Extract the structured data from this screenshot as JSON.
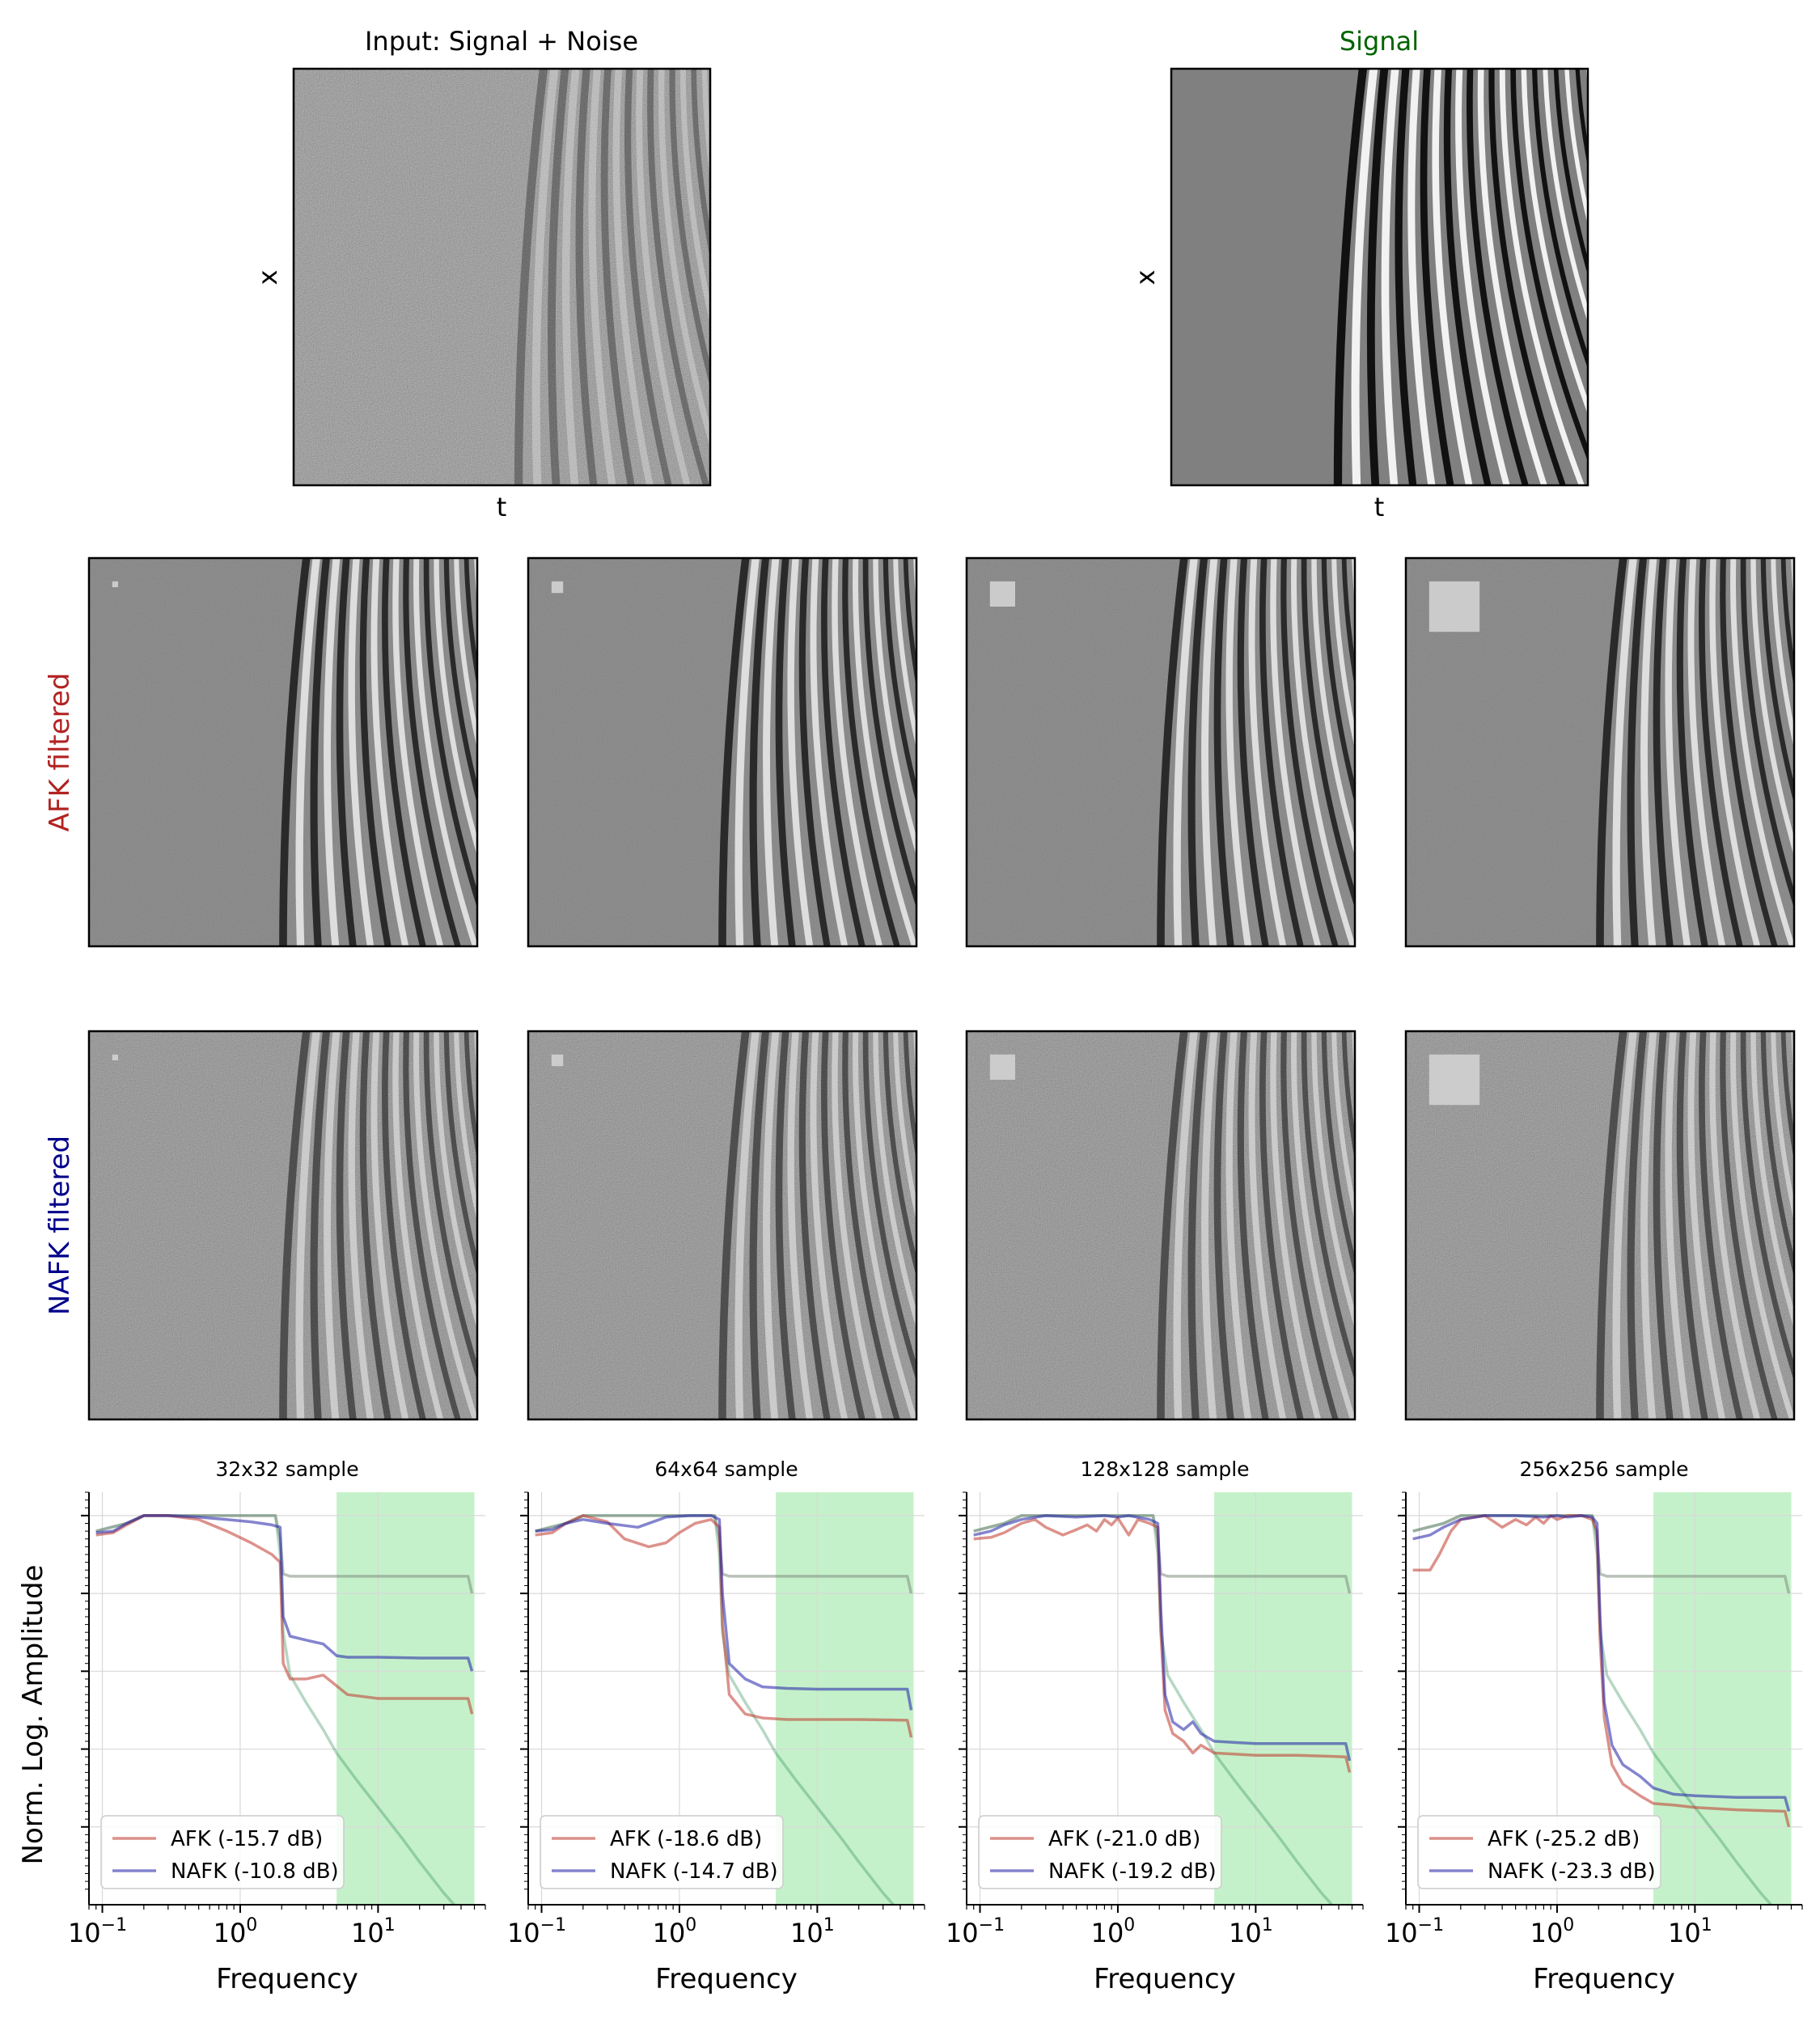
{
  "top_panels": {
    "input": {
      "title": "Input: Signal + Noise",
      "xlabel": "t",
      "ylabel": "x",
      "title_color": "#000000"
    },
    "signal": {
      "title": "Signal",
      "xlabel": "t",
      "ylabel": "x",
      "title_color": "#006400"
    }
  },
  "row_labels": {
    "afk": {
      "text": "AFK filtered",
      "color": "#b22222"
    },
    "nafk": {
      "text": "NAFK filtered",
      "color": "#00008b"
    }
  },
  "colors": {
    "afk": "#c0392b",
    "nafk": "#1f1fa8",
    "signal": "#2e8b57",
    "noise": "#7f8c7f",
    "band": "#2ecc40"
  },
  "chart_data": [
    {
      "type": "line",
      "title": "32x32 sample",
      "xlabel": "Frequency",
      "ylabel": "Norm. Log. Amplitude",
      "x_scale": "log",
      "xlim": [
        0.08,
        60
      ],
      "xticks": [
        {
          "value": 0.1,
          "label": "10−1"
        },
        {
          "value": 1,
          "label": "100"
        },
        {
          "value": 10,
          "label": "101"
        }
      ],
      "ylim": [
        -5.0,
        0.3
      ],
      "shaded_band": [
        5,
        50
      ],
      "grid": true,
      "legend_position": "lower-left",
      "series": [
        {
          "name": "AFK (-15.7 dB)",
          "key": "afk",
          "x": [
            0.09,
            0.12,
            0.15,
            0.2,
            0.3,
            0.5,
            0.8,
            1.2,
            1.7,
            1.95,
            2.05,
            2.3,
            3,
            4,
            6,
            10,
            20,
            45,
            48
          ],
          "y": [
            -0.25,
            -0.22,
            -0.12,
            0.0,
            0.0,
            -0.05,
            -0.2,
            -0.35,
            -0.5,
            -0.6,
            -1.9,
            -2.1,
            -2.1,
            -2.05,
            -2.3,
            -2.35,
            -2.35,
            -2.35,
            -2.55
          ]
        },
        {
          "name": "NAFK (-10.8 dB)",
          "key": "nafk",
          "x": [
            0.09,
            0.12,
            0.15,
            0.2,
            0.3,
            0.5,
            0.8,
            1.2,
            1.7,
            1.95,
            2.05,
            2.3,
            3,
            4,
            5,
            6,
            10,
            20,
            45,
            48
          ],
          "y": [
            -0.22,
            -0.2,
            -0.1,
            0.0,
            0.0,
            -0.02,
            -0.05,
            -0.08,
            -0.12,
            -0.15,
            -1.3,
            -1.55,
            -1.6,
            -1.65,
            -1.8,
            -1.82,
            -1.82,
            -1.83,
            -1.83,
            -2.0
          ]
        },
        {
          "name": "Signal",
          "key": "signal",
          "x": [
            0.09,
            0.15,
            0.2,
            0.5,
            1.0,
            1.8,
            1.95,
            2.05,
            2.3,
            3,
            4,
            5,
            7,
            10,
            15,
            20,
            30,
            45
          ],
          "y": [
            -0.2,
            -0.1,
            0.0,
            0.0,
            0.0,
            0.0,
            -0.5,
            -1.5,
            -2.05,
            -2.4,
            -2.75,
            -3.05,
            -3.4,
            -3.75,
            -4.15,
            -4.45,
            -4.85,
            -5.2
          ]
        },
        {
          "name": "Noise",
          "key": "noise",
          "x": [
            0.09,
            0.15,
            0.2,
            0.5,
            1.0,
            1.8,
            1.95,
            2.05,
            2.3,
            3,
            10,
            45,
            48
          ],
          "y": [
            -0.2,
            -0.1,
            0.0,
            0.0,
            0.0,
            0.0,
            -0.3,
            -0.75,
            -0.78,
            -0.78,
            -0.78,
            -0.78,
            -1.0
          ]
        }
      ]
    },
    {
      "type": "line",
      "title": "64x64 sample",
      "xlabel": "Frequency",
      "x_scale": "log",
      "xlim": [
        0.08,
        60
      ],
      "xticks": [
        {
          "value": 0.1,
          "label": "10−1"
        },
        {
          "value": 1,
          "label": "100"
        },
        {
          "value": 10,
          "label": "101"
        }
      ],
      "ylim": [
        -5.0,
        0.3
      ],
      "shaded_band": [
        5,
        50
      ],
      "grid": true,
      "legend_position": "lower-left",
      "series": [
        {
          "name": "AFK (-18.6 dB)",
          "key": "afk",
          "x": [
            0.09,
            0.12,
            0.15,
            0.2,
            0.3,
            0.4,
            0.6,
            0.8,
            1.0,
            1.3,
            1.7,
            1.95,
            2.05,
            2.3,
            3,
            4,
            6,
            10,
            20,
            45,
            48
          ],
          "y": [
            -0.25,
            -0.22,
            -0.1,
            0.0,
            -0.08,
            -0.3,
            -0.4,
            -0.35,
            -0.22,
            -0.1,
            -0.05,
            -0.15,
            -1.4,
            -2.3,
            -2.55,
            -2.6,
            -2.62,
            -2.62,
            -2.62,
            -2.63,
            -2.85
          ]
        },
        {
          "name": "NAFK (-14.7 dB)",
          "key": "nafk",
          "x": [
            0.09,
            0.12,
            0.15,
            0.2,
            0.3,
            0.5,
            0.8,
            1.2,
            1.7,
            1.95,
            2.05,
            2.3,
            3,
            4,
            6,
            10,
            20,
            45,
            48
          ],
          "y": [
            -0.2,
            -0.18,
            -0.1,
            -0.05,
            -0.1,
            -0.15,
            -0.02,
            0.0,
            0.0,
            -0.05,
            -1.0,
            -1.9,
            -2.1,
            -2.2,
            -2.22,
            -2.23,
            -2.23,
            -2.23,
            -2.5
          ]
        },
        {
          "name": "Signal",
          "key": "signal",
          "x": [
            0.09,
            0.15,
            0.2,
            0.5,
            1.0,
            1.8,
            1.95,
            2.05,
            2.3,
            3,
            4,
            5,
            7,
            10,
            15,
            20,
            30,
            45
          ],
          "y": [
            -0.2,
            -0.1,
            0.0,
            0.0,
            0.0,
            0.0,
            -0.5,
            -1.5,
            -2.05,
            -2.4,
            -2.75,
            -3.05,
            -3.4,
            -3.75,
            -4.15,
            -4.45,
            -4.85,
            -5.2
          ]
        },
        {
          "name": "Noise",
          "key": "noise",
          "x": [
            0.09,
            0.15,
            0.2,
            0.5,
            1.0,
            1.8,
            1.95,
            2.05,
            2.3,
            3,
            10,
            45,
            48
          ],
          "y": [
            -0.2,
            -0.1,
            0.0,
            0.0,
            0.0,
            0.0,
            -0.3,
            -0.75,
            -0.78,
            -0.78,
            -0.78,
            -0.78,
            -1.0
          ]
        }
      ]
    },
    {
      "type": "line",
      "title": "128x128 sample",
      "xlabel": "Frequency",
      "x_scale": "log",
      "xlim": [
        0.08,
        60
      ],
      "xticks": [
        {
          "value": 0.1,
          "label": "10−1"
        },
        {
          "value": 1,
          "label": "100"
        },
        {
          "value": 10,
          "label": "101"
        }
      ],
      "ylim": [
        -5.0,
        0.3
      ],
      "shaded_band": [
        5,
        50
      ],
      "grid": true,
      "legend_position": "lower-left",
      "series": [
        {
          "name": "AFK (-21.0 dB)",
          "key": "afk",
          "x": [
            0.09,
            0.12,
            0.15,
            0.2,
            0.25,
            0.3,
            0.4,
            0.5,
            0.6,
            0.7,
            0.8,
            0.9,
            1.0,
            1.2,
            1.4,
            1.7,
            1.95,
            2.05,
            2.2,
            2.5,
            3,
            3.5,
            4,
            5,
            10,
            20,
            45,
            48
          ],
          "y": [
            -0.3,
            -0.28,
            -0.22,
            -0.1,
            -0.05,
            -0.15,
            -0.25,
            -0.18,
            -0.12,
            -0.2,
            -0.05,
            -0.12,
            -0.03,
            -0.25,
            -0.05,
            -0.1,
            -0.15,
            -1.5,
            -2.5,
            -2.8,
            -2.9,
            -3.05,
            -2.95,
            -3.05,
            -3.08,
            -3.08,
            -3.1,
            -3.3
          ]
        },
        {
          "name": "NAFK (-19.2 dB)",
          "key": "nafk",
          "x": [
            0.09,
            0.12,
            0.15,
            0.2,
            0.3,
            0.5,
            0.8,
            1.0,
            1.2,
            1.7,
            1.95,
            2.05,
            2.2,
            2.5,
            3,
            3.5,
            4,
            5,
            10,
            20,
            45,
            48
          ],
          "y": [
            -0.25,
            -0.2,
            -0.12,
            -0.05,
            0.0,
            -0.02,
            0.0,
            -0.02,
            0.0,
            -0.05,
            -0.1,
            -1.2,
            -2.3,
            -2.65,
            -2.75,
            -2.65,
            -2.8,
            -2.9,
            -2.93,
            -2.93,
            -2.93,
            -3.15
          ]
        },
        {
          "name": "Signal",
          "key": "signal",
          "x": [
            0.09,
            0.15,
            0.2,
            0.5,
            1.0,
            1.8,
            1.95,
            2.05,
            2.3,
            3,
            4,
            5,
            7,
            10,
            15,
            20,
            30,
            45
          ],
          "y": [
            -0.2,
            -0.1,
            0.0,
            0.0,
            0.0,
            0.0,
            -0.5,
            -1.5,
            -2.05,
            -2.4,
            -2.75,
            -3.05,
            -3.4,
            -3.75,
            -4.15,
            -4.45,
            -4.85,
            -5.2
          ]
        },
        {
          "name": "Noise",
          "key": "noise",
          "x": [
            0.09,
            0.15,
            0.2,
            0.5,
            1.0,
            1.8,
            1.95,
            2.05,
            2.3,
            3,
            10,
            45,
            48
          ],
          "y": [
            -0.2,
            -0.1,
            0.0,
            0.0,
            0.0,
            0.0,
            -0.3,
            -0.75,
            -0.78,
            -0.78,
            -0.78,
            -0.78,
            -1.0
          ]
        }
      ]
    },
    {
      "type": "line",
      "title": "256x256 sample",
      "xlabel": "Frequency",
      "x_scale": "log",
      "xlim": [
        0.08,
        60
      ],
      "xticks": [
        {
          "value": 0.1,
          "label": "10−1"
        },
        {
          "value": 1,
          "label": "100"
        },
        {
          "value": 10,
          "label": "101"
        }
      ],
      "ylim": [
        -5.0,
        0.3
      ],
      "shaded_band": [
        5,
        50
      ],
      "grid": true,
      "legend_position": "lower-left",
      "series": [
        {
          "name": "AFK (-25.2 dB)",
          "key": "afk",
          "x": [
            0.09,
            0.12,
            0.14,
            0.17,
            0.2,
            0.3,
            0.4,
            0.5,
            0.6,
            0.7,
            0.8,
            0.9,
            1.0,
            1.2,
            1.5,
            1.8,
            1.95,
            2.05,
            2.2,
            2.5,
            3,
            4,
            5,
            7,
            10,
            20,
            45,
            48
          ],
          "y": [
            -0.7,
            -0.7,
            -0.5,
            -0.2,
            -0.05,
            0.0,
            -0.15,
            -0.05,
            -0.12,
            -0.02,
            -0.1,
            0.0,
            -0.05,
            0.0,
            0.0,
            -0.05,
            -0.2,
            -1.6,
            -2.6,
            -3.2,
            -3.45,
            -3.6,
            -3.7,
            -3.72,
            -3.75,
            -3.78,
            -3.8,
            -4.0
          ]
        },
        {
          "name": "NAFK (-23.3 dB)",
          "key": "nafk",
          "x": [
            0.09,
            0.12,
            0.15,
            0.2,
            0.3,
            0.5,
            0.8,
            1.0,
            1.2,
            1.5,
            1.8,
            1.95,
            2.05,
            2.2,
            2.5,
            3,
            4,
            5,
            7,
            10,
            20,
            45,
            48
          ],
          "y": [
            -0.3,
            -0.25,
            -0.15,
            -0.05,
            0.0,
            0.0,
            -0.02,
            0.0,
            -0.02,
            0.0,
            -0.02,
            -0.1,
            -1.3,
            -2.4,
            -2.95,
            -3.2,
            -3.35,
            -3.5,
            -3.58,
            -3.6,
            -3.62,
            -3.62,
            -3.8
          ]
        },
        {
          "name": "Signal",
          "key": "signal",
          "x": [
            0.09,
            0.15,
            0.2,
            0.5,
            1.0,
            1.8,
            1.95,
            2.05,
            2.3,
            3,
            4,
            5,
            7,
            10,
            15,
            20,
            30,
            45
          ],
          "y": [
            -0.2,
            -0.1,
            0.0,
            0.0,
            0.0,
            0.0,
            -0.5,
            -1.5,
            -2.05,
            -2.4,
            -2.75,
            -3.05,
            -3.4,
            -3.75,
            -4.15,
            -4.45,
            -4.85,
            -5.2
          ]
        },
        {
          "name": "Noise",
          "key": "noise",
          "x": [
            0.09,
            0.15,
            0.2,
            0.5,
            1.0,
            1.8,
            1.95,
            2.05,
            2.3,
            3,
            10,
            45,
            48
          ],
          "y": [
            -0.2,
            -0.1,
            0.0,
            0.0,
            0.0,
            0.0,
            -0.3,
            -0.75,
            -0.78,
            -0.78,
            -0.78,
            -0.78,
            -1.0
          ]
        }
      ]
    }
  ]
}
